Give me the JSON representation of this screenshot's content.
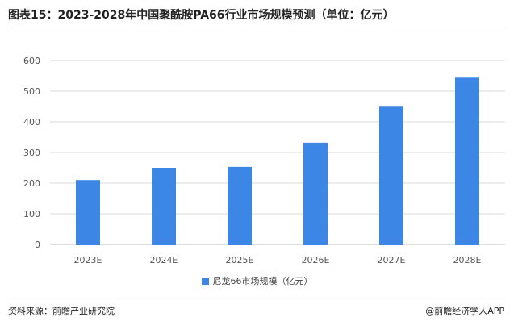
{
  "title": "图表15：2023-2028年中国聚酰胺PA66行业市场规模预测（单位：亿元）",
  "source": "资料来源：前瞻产业研究院",
  "credit": "@前瞻经济学人APP",
  "colors": {
    "bar": "#3c86e6",
    "grid": "#d9d9d9",
    "axis": "#bfbfbf"
  },
  "chart_data": {
    "type": "bar",
    "categories": [
      "2023E",
      "2024E",
      "2025E",
      "2026E",
      "2027E",
      "2028E"
    ],
    "series": [
      {
        "name": "尼龙66市场规模（亿元）",
        "values": [
          210,
          250,
          253,
          332,
          452,
          544
        ]
      }
    ],
    "ylim": [
      0,
      600
    ],
    "yticks": [
      0,
      100,
      200,
      300,
      400,
      500,
      600
    ],
    "grid": true,
    "legend_position": "bottom-center"
  }
}
